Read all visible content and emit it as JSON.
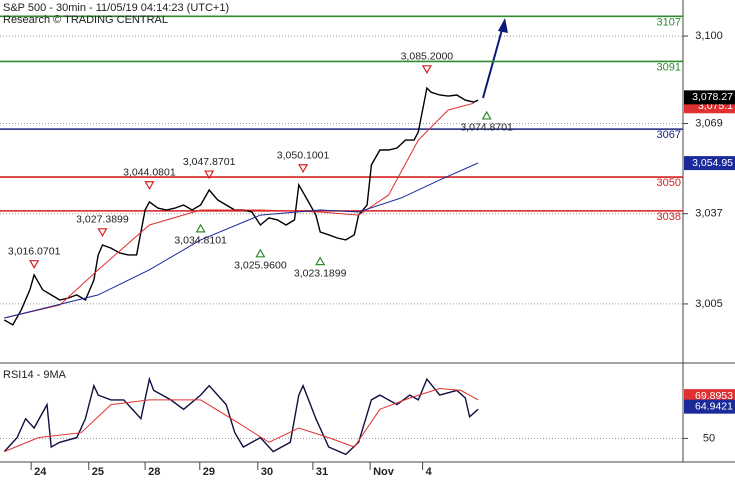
{
  "header": {
    "title": "S&P 500 - 30min - 11/05/19 04:14:23 (UTC+1)",
    "subtitle": "Research © TRADING CENTRAL"
  },
  "chart_data": [
    {
      "type": "line",
      "xlim": [
        0,
        160
      ],
      "ylim": [
        2984.4,
        3112.8
      ],
      "yticks": [
        {
          "value": 3100,
          "label": "3,100"
        },
        {
          "value": 3069,
          "label": "3,069"
        },
        {
          "value": 3037,
          "label": "3,037"
        },
        {
          "value": 3005,
          "label": "3,005"
        }
      ],
      "grid": true,
      "series": [
        {
          "color": "#000000",
          "x": [
            1,
            3,
            5,
            7,
            8,
            10,
            12,
            14,
            16,
            18,
            20,
            22,
            23,
            24,
            26,
            28,
            30,
            32,
            34,
            35,
            37,
            39,
            41,
            43,
            45,
            47,
            49,
            51,
            53,
            55,
            57,
            59,
            61,
            63,
            65,
            67,
            69,
            70,
            72,
            74,
            75,
            77,
            79,
            81,
            83,
            84,
            86,
            87,
            89,
            91,
            93,
            95,
            97,
            98,
            100,
            101,
            103,
            105,
            107,
            109,
            111,
            112
          ],
          "values": [
            2999.3,
            2997.6,
            3002.9,
            3010,
            3015.3,
            3010,
            3008.2,
            3006.4,
            3007.1,
            3008.2,
            3006.4,
            3013.5,
            3022.4,
            3025.9,
            3024.8,
            3023.1,
            3022.4,
            3022.4,
            3038.3,
            3041.2,
            3039,
            3038.3,
            3039,
            3040.1,
            3038.3,
            3040.1,
            3045.4,
            3041.9,
            3040.1,
            3038.3,
            3038.3,
            3037.6,
            3033,
            3035.5,
            3034.8,
            3033,
            3034.8,
            3047.2,
            3041.9,
            3036.5,
            3030.5,
            3029.5,
            3028.4,
            3027.7,
            3029.5,
            3036.5,
            3040.1,
            3054.3,
            3059.6,
            3059.6,
            3060.3,
            3063.1,
            3063.1,
            3066,
            3081.6,
            3080.1,
            3079.1,
            3078.7,
            3079.1,
            3077.3,
            3076.6,
            3077.3
          ]
        },
        {
          "color": "#e03030",
          "x": [
            1,
            14,
            23,
            35,
            47,
            61,
            75,
            84,
            91,
            98,
            105,
            111
          ],
          "values": [
            3000,
            3004.6,
            3017.1,
            3033,
            3038.3,
            3038.3,
            3037.6,
            3036.5,
            3043.6,
            3063.1,
            3073.8,
            3076.2
          ]
        },
        {
          "color": "#1a2a9a",
          "x": [
            1,
            23,
            35,
            47,
            61,
            75,
            84,
            94,
            103,
            112
          ],
          "values": [
            3000,
            3008.2,
            3017.1,
            3027.7,
            3036.5,
            3038.3,
            3037.6,
            3042.6,
            3049,
            3055
          ]
        }
      ],
      "levels": {
        "values": [
          3107,
          3091,
          3067,
          3050,
          3038
        ],
        "colors": [
          "#2e8b2e",
          "#2e8b2e",
          "#1a237e",
          "#d42020",
          "#d42020"
        ]
      },
      "highs": {
        "x": [
          8,
          24,
          35,
          49,
          71,
          100
        ],
        "values": [
          3016.0701,
          3027.3899,
          3044.0801,
          3047.8701,
          3050.1001,
          3085.2
        ],
        "value_labels": [
          "3,016.0701",
          "3,027.3899",
          "3,044.0801",
          "3,047.8701",
          "3,050.1001",
          "3,085.2000"
        ],
        "color": "#d42020"
      },
      "lows": {
        "x": [
          47,
          61,
          75,
          114
        ],
        "values": [
          3034.8101,
          3025.96,
          3023.1899,
          3074.8701
        ],
        "value_labels": [
          "3,034.8101",
          "3,025.9600",
          "3,023.1899",
          "3,074.8701"
        ],
        "color": "#2e8b2e"
      },
      "price_tags": {
        "values": [
          3075.1,
          3078.27,
          3054.95
        ],
        "value_labels": [
          "3,075.1",
          "3,078.27",
          "3,054.95"
        ],
        "colors": [
          "#e03030",
          "#000000",
          "#1a2a9a"
        ]
      }
    },
    {
      "type": "line",
      "title": "RSI14 - 9MA",
      "xlim": [
        0,
        160
      ],
      "ylim": [
        39.4,
        85
      ],
      "yticks": [
        50
      ],
      "grid": true,
      "xticks": [
        {
          "value": 7.3,
          "label": "24"
        },
        {
          "value": 20.8,
          "label": "25"
        },
        {
          "value": 34,
          "label": "28"
        },
        {
          "value": 46.8,
          "label": "29"
        },
        {
          "value": 60.4,
          "label": "30"
        },
        {
          "value": 73.3,
          "label": "31"
        },
        {
          "value": 86.7,
          "label": "Nov"
        },
        {
          "value": 99,
          "label": "4"
        }
      ],
      "series": [
        {
          "color": "#101040",
          "x": [
            1,
            4,
            6,
            8,
            11,
            12,
            14,
            18,
            20,
            22,
            23,
            26,
            29,
            33,
            35,
            36,
            40,
            43,
            47,
            49,
            53,
            55,
            57,
            61,
            64,
            68,
            70,
            71,
            74,
            77,
            81,
            84,
            87,
            89,
            93,
            96,
            98,
            100,
            103,
            107,
            109,
            110,
            112
          ],
          "values": [
            43.8,
            50.4,
            59.3,
            54.9,
            65.9,
            46,
            48.2,
            50.4,
            59.3,
            74.8,
            70.4,
            68.1,
            68.1,
            59.3,
            77.9,
            72.6,
            68.1,
            63.7,
            70.4,
            74.8,
            65.9,
            52.7,
            46,
            50.4,
            43.8,
            48.2,
            70.4,
            74.8,
            59.3,
            46,
            42.5,
            48.2,
            68.1,
            70.4,
            65.9,
            70.4,
            68.1,
            77.9,
            70.4,
            72.6,
            69,
            60.2,
            63.7
          ]
        },
        {
          "color": "#e03030",
          "x": [
            1,
            9,
            19,
            26,
            35,
            47,
            56,
            63,
            70,
            77,
            83,
            89,
            96,
            103,
            108,
            112
          ],
          "values": [
            43.8,
            50.4,
            52.7,
            65.9,
            68.1,
            68.1,
            57.1,
            48.2,
            54.9,
            50.4,
            46,
            63.7,
            69,
            73.5,
            72.6,
            68.1
          ]
        }
      ],
      "price_tags": {
        "values": [
          69.8953,
          64.9421
        ],
        "colors": [
          "#e03030",
          "#1a2a9a"
        ]
      }
    }
  ]
}
